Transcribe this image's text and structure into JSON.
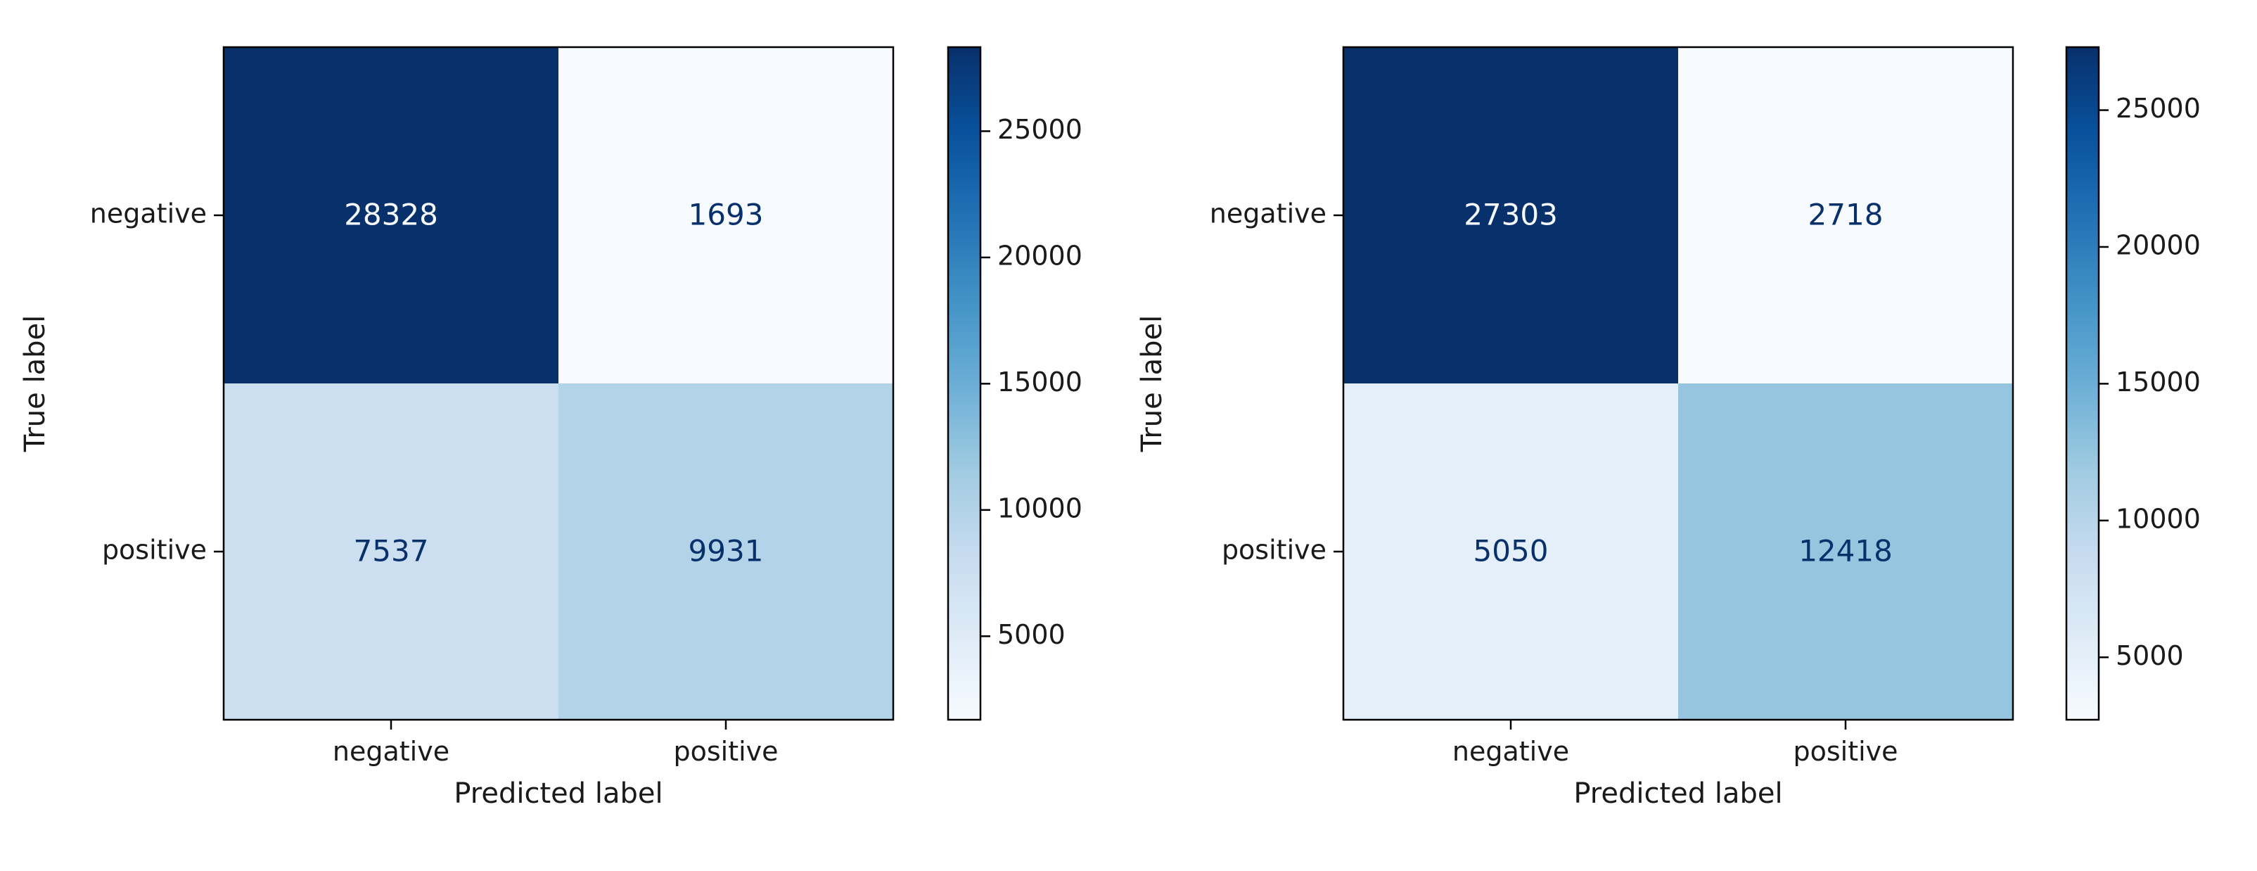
{
  "chart_data": [
    {
      "type": "heatmap",
      "title": "",
      "xlabel": "Predicted label",
      "ylabel": "True label",
      "x_categories": [
        "negative",
        "positive"
      ],
      "y_categories": [
        "negative",
        "positive"
      ],
      "values": [
        [
          28328,
          1693
        ],
        [
          7537,
          9931
        ]
      ],
      "colormap": "Blues",
      "colorbar": {
        "range": [
          1693,
          28328
        ],
        "ticks": [
          5000,
          10000,
          15000,
          20000,
          25000
        ],
        "tick_labels": [
          "5000",
          "10000",
          "15000",
          "20000",
          "25000"
        ]
      },
      "grid": false
    },
    {
      "type": "heatmap",
      "title": "",
      "xlabel": "Predicted label",
      "ylabel": "True label",
      "x_categories": [
        "negative",
        "positive"
      ],
      "y_categories": [
        "negative",
        "positive"
      ],
      "values": [
        [
          27303,
          2718
        ],
        [
          5050,
          12418
        ]
      ],
      "colormap": "Blues",
      "colorbar": {
        "range": [
          2718,
          27303
        ],
        "ticks": [
          5000,
          10000,
          15000,
          20000,
          25000
        ],
        "tick_labels": [
          "5000",
          "10000",
          "15000",
          "20000",
          "25000"
        ]
      },
      "grid": false
    }
  ],
  "colors": {
    "dark_text": "#08306b",
    "light_text": "#f7fbff",
    "axis": "#000000"
  }
}
